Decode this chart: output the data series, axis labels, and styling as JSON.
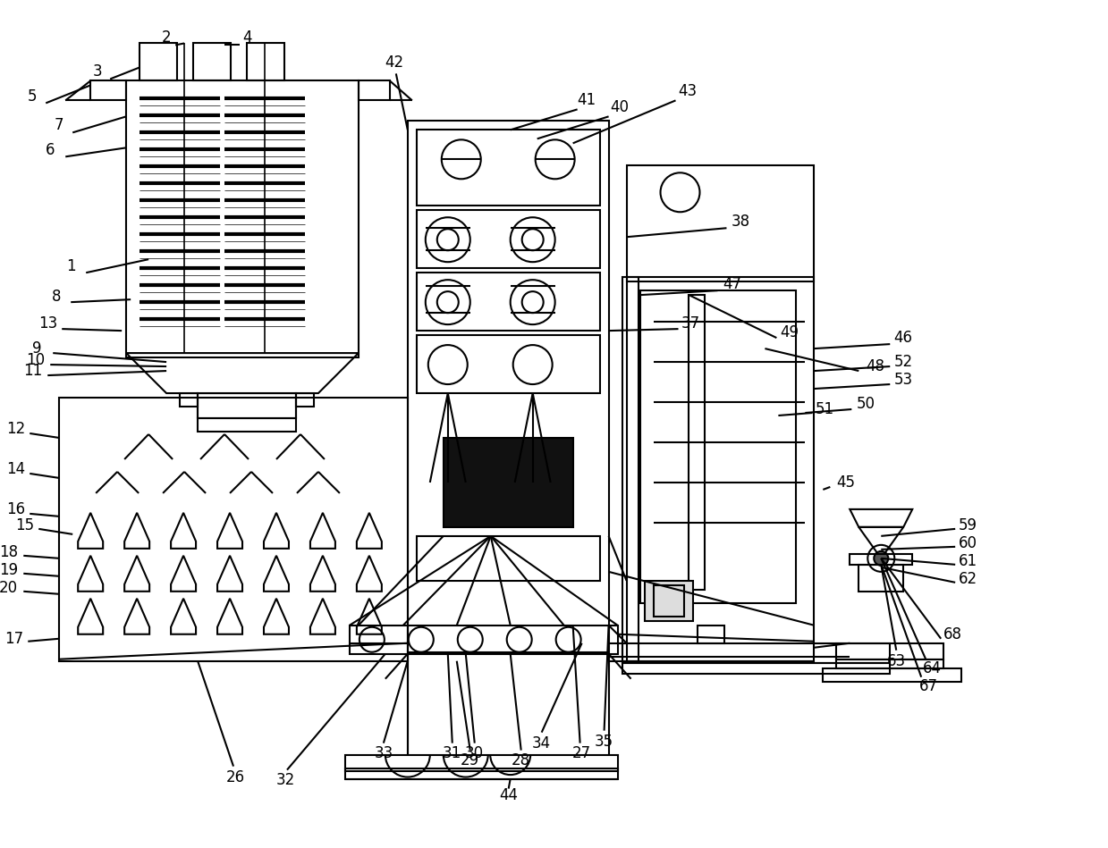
{
  "bg_color": "#ffffff",
  "line_color": "#000000",
  "lw": 1.5,
  "figsize": [
    12.39,
    9.49
  ],
  "dpi": 100
}
